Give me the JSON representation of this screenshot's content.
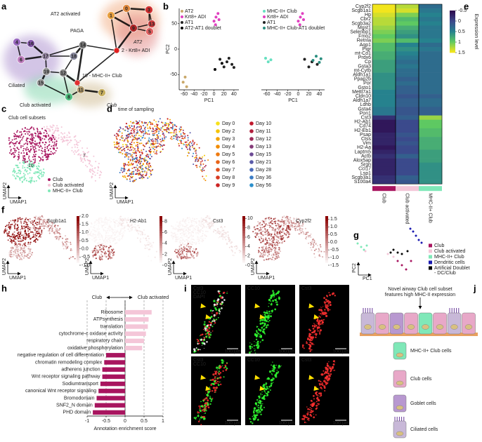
{
  "panel_labels": [
    "a",
    "b",
    "c",
    "d",
    "e",
    "f",
    "g",
    "h",
    "i",
    "j"
  ],
  "paga": {
    "title": "PAGA",
    "group_labels": [
      {
        "text": "AT2 activated",
        "color": "#f0a070"
      },
      {
        "text": "AT2",
        "color": "#e08080"
      },
      {
        "text": "Ciliated",
        "color": "#a080c8"
      },
      {
        "text": "Club activated",
        "color": "#70d0a0"
      },
      {
        "text": "Club",
        "color": "#c8b080"
      }
    ],
    "nodes": [
      {
        "label": "0",
        "color": "#e0893e"
      },
      {
        "label": "3",
        "color": "#d03030"
      },
      {
        "label": "1",
        "color": "#e8a040"
      },
      {
        "label": "9",
        "color": "#b02828"
      },
      {
        "label": "13",
        "color": "#d04040"
      },
      {
        "label": "5",
        "color": "#e06060"
      },
      {
        "label": "2 - Krt8+ ADI",
        "color": "#e02020"
      },
      {
        "label": "14",
        "color": "#777777"
      },
      {
        "label": "18",
        "color": "#8a8aa0"
      },
      {
        "label": "4",
        "color": "#9a6ac0"
      },
      {
        "label": "16",
        "color": "#8a5ab0"
      },
      {
        "label": "17",
        "color": "#9a8aa8"
      },
      {
        "label": "6",
        "color": "#c080c0"
      },
      {
        "label": "19",
        "color": "#9a9a9a"
      },
      {
        "label": "12",
        "color": "#8a8a8a"
      },
      {
        "label": "10 - MHC-II+ Club",
        "color": "#e03030"
      },
      {
        "label": "15",
        "color": "#9a9a9a"
      },
      {
        "label": "11",
        "color": "#b8a070"
      },
      {
        "label": "7",
        "color": "#c8b060"
      },
      {
        "label": "8",
        "color": "#50c080"
      }
    ]
  },
  "chart_data": [
    {
      "type": "scatter",
      "xlabel": "PC1",
      "ylabel": "PC2",
      "xlim": [
        -70,
        50
      ],
      "ylim": [
        -80,
        80
      ],
      "xticks": [
        -60,
        -40,
        -20,
        0,
        20,
        40
      ],
      "yticks": [
        -50,
        0,
        50
      ],
      "series": [
        {
          "name": "AT2",
          "color": "#c9a86a",
          "x": [
            -62,
            -58,
            -55
          ],
          "values": [
            -65,
            -55,
            -74
          ]
        },
        {
          "name": "Krt8+ ADI",
          "color": "#e040c0",
          "x": [
            0,
            4,
            8,
            10,
            3
          ],
          "values": [
            55,
            63,
            70,
            58,
            48
          ]
        },
        {
          "name": "AT1",
          "color": "#222222",
          "x": [
            12,
            20,
            26,
            30,
            36,
            40
          ],
          "values": [
            -20,
            -35,
            -25,
            -18,
            -30,
            -36
          ]
        },
        {
          "name": "AT2-AT1 doublet",
          "color": "#000000",
          "x": [
            2,
            16
          ],
          "values": [
            -40,
            -28
          ]
        }
      ]
    },
    {
      "type": "scatter",
      "xlabel": "PC1",
      "xlim": [
        -70,
        50
      ],
      "ylim": [
        -80,
        80
      ],
      "xticks": [
        -60,
        -40,
        -20,
        0,
        20,
        40
      ],
      "series": [
        {
          "name": "MHC-II+ Club",
          "color": "#66e0c0",
          "x": [
            -62,
            -57,
            -52
          ],
          "values": [
            -18,
            -25,
            -21
          ]
        },
        {
          "name": "Krt8+ ADI",
          "color": "#e040c0",
          "x": [
            0,
            4,
            8,
            10,
            3
          ],
          "values": [
            55,
            63,
            70,
            58,
            48
          ]
        },
        {
          "name": "AT1",
          "color": "#222222",
          "x": [
            12,
            20,
            26,
            36
          ],
          "values": [
            -20,
            -35,
            -25,
            -30
          ]
        },
        {
          "name": "MHC-II+ Club-AT1 doublet",
          "color": "#2a8f80",
          "x": [
            28,
            34,
            40,
            43
          ],
          "values": [
            -22,
            -14,
            -26,
            -19
          ]
        }
      ]
    },
    {
      "type": "heatmap",
      "x": [
        "Club",
        "Club activated",
        "MHC-II+ Club"
      ],
      "column_colors": [
        "#a8155f",
        "#f4c6d8",
        "#7fe8b8"
      ],
      "y": [
        "Cyp2f2",
        "Scgb1a1",
        "Hp",
        "Cbr2",
        "Scgb3a2",
        "Mgst1",
        "Selenbp1",
        "Fmo2",
        "Retnla",
        "Aqp1",
        "Pigr",
        "mt-Co1",
        "Prdx6",
        "Cp",
        "Gsta3",
        "mt-Cytb",
        "Aldh1a1",
        "Ppap2b",
        "Por",
        "Gsto1",
        "Mettl7a1",
        "Cldn10",
        "Aldh1a7",
        "Ldhb",
        "Gsta4",
        "Pon1",
        "Cst3",
        "H2-Ab1",
        "Cd74",
        "H2-Eb1",
        "Psap",
        "Ctss",
        "Vim",
        "H2-Aa",
        "Laptm5",
        "Actb",
        "Alox5ap",
        "Srgn",
        "Ccl17",
        "Lsp1",
        "Scgb3a1",
        "S100a4"
      ],
      "row_label_colors": [
        "#e02020",
        "#e02020",
        "#222222",
        "#222222",
        "#222222",
        "#222222",
        "#222222",
        "#222222",
        "#222222",
        "#222222",
        "#222222",
        "#222222",
        "#222222",
        "#222222",
        "#222222",
        "#222222",
        "#222222",
        "#222222",
        "#222222",
        "#222222",
        "#222222",
        "#222222",
        "#222222",
        "#222222",
        "#222222",
        "#222222",
        "#e02020",
        "#e02020",
        "#222222",
        "#222222",
        "#222222",
        "#222222",
        "#222222",
        "#222222",
        "#222222",
        "#222222",
        "#222222",
        "#222222",
        "#222222",
        "#222222",
        "#222222",
        "#222222"
      ],
      "values": [
        [
          1.5,
          1.3,
          0.3
        ],
        [
          1.5,
          1.4,
          0.4
        ],
        [
          1.4,
          1.1,
          0.5
        ],
        [
          1.3,
          0.9,
          0.4
        ],
        [
          1.3,
          1.0,
          0.5
        ],
        [
          1.2,
          0.8,
          0.4
        ],
        [
          1.1,
          0.7,
          0.4
        ],
        [
          1.0,
          0.6,
          0.4
        ],
        [
          1.1,
          0.9,
          0.5
        ],
        [
          0.9,
          0.5,
          0.3
        ],
        [
          0.9,
          0.6,
          0.4
        ],
        [
          0.8,
          0.5,
          0.3
        ],
        [
          0.8,
          0.4,
          0.3
        ],
        [
          0.7,
          0.3,
          0.3
        ],
        [
          0.7,
          0.4,
          0.3
        ],
        [
          0.7,
          0.3,
          0.3
        ],
        [
          0.6,
          0.3,
          0.3
        ],
        [
          0.6,
          0.2,
          0.3
        ],
        [
          0.6,
          0.3,
          0.3
        ],
        [
          0.6,
          0.2,
          0.3
        ],
        [
          0.5,
          0.2,
          0.3
        ],
        [
          0.5,
          0.1,
          0.2
        ],
        [
          0.5,
          0.2,
          0.3
        ],
        [
          0.5,
          0.2,
          0.3
        ],
        [
          0.4,
          0.1,
          0.2
        ],
        [
          0.4,
          0.1,
          0.2
        ],
        [
          -0.2,
          0.2,
          1.2
        ],
        [
          -0.4,
          0.0,
          1.0
        ],
        [
          -0.4,
          0.0,
          1.0
        ],
        [
          -0.4,
          0.0,
          0.9
        ],
        [
          -0.3,
          0.1,
          0.9
        ],
        [
          -0.3,
          0.0,
          0.8
        ],
        [
          -0.3,
          0.1,
          0.8
        ],
        [
          -0.4,
          0.0,
          0.8
        ],
        [
          -0.3,
          0.0,
          0.7
        ],
        [
          -0.2,
          0.2,
          0.7
        ],
        [
          -0.3,
          0.0,
          0.7
        ],
        [
          -0.3,
          0.0,
          0.6
        ],
        [
          -0.3,
          0.0,
          0.6
        ],
        [
          -0.3,
          0.0,
          0.6
        ],
        [
          -0.2,
          0.2,
          0.6
        ],
        [
          -0.2,
          0.1,
          0.6
        ]
      ],
      "zlim": [
        -0.5,
        1.5
      ],
      "zticks": [
        -0.5,
        0,
        0.5,
        1,
        1.5
      ],
      "zlabel": "Expression level",
      "colormap": [
        "#2d0a4e",
        "#3b4a8c",
        "#26828e",
        "#5ec962",
        "#f2e51d"
      ]
    },
    {
      "type": "bar",
      "orientation": "horizontal",
      "xlabel": "Annotation enrichment score",
      "direction_labels": [
        "Club",
        "Club activated"
      ],
      "categories": [
        "Ribosome",
        "ATPsynthesis",
        "translation",
        "cytochrome-c oxidase activity",
        "respiratory chain",
        "oxidative phosphorylation",
        "negative regulation of cell differentiation",
        "chromatin remodeling complex",
        "adherens junction",
        "Wnt receptor signaling pathway",
        "Sodiumtransport",
        "canonical Wnt receptor signaling",
        "Bromodomain",
        "SNF2_N domain",
        "PHD domain"
      ],
      "values": [
        0.7,
        0.62,
        0.6,
        0.55,
        0.5,
        0.45,
        -0.5,
        -0.55,
        -0.6,
        -0.6,
        -0.65,
        -0.7,
        -0.75,
        -0.8,
        -0.85
      ],
      "colors": [
        "#f4c6d8",
        "#f4c6d8",
        "#f4c6d8",
        "#f4c6d8",
        "#f4c6d8",
        "#f4c6d8",
        "#a8155f",
        "#a8155f",
        "#a8155f",
        "#a8155f",
        "#a8155f",
        "#a8155f",
        "#a8155f",
        "#a8155f",
        "#a8155f"
      ],
      "xlim": [
        -1,
        1
      ],
      "xticks": [
        -1,
        -0.5,
        0,
        0.5,
        1
      ],
      "grid": true
    }
  ],
  "umap_c": {
    "title": "Club cell subsets",
    "xlabel": "UMAP1",
    "ylabel": "UMAP2",
    "cluster_labels": [
      "7",
      "10"
    ],
    "legend": [
      {
        "name": "Club",
        "color": "#a8155f"
      },
      {
        "name": "Club activated",
        "color": "#f4c6d8"
      },
      {
        "name": "MHC-II+ Club",
        "color": "#7fe8b8"
      }
    ]
  },
  "umap_d": {
    "title": "time of sampling",
    "xlabel": "UMAP1",
    "ylabel": "UMAP2",
    "legend": [
      {
        "name": "Day 0",
        "color": "#f7e11a"
      },
      {
        "name": "Day 2",
        "color": "#f5c400"
      },
      {
        "name": "Day 3",
        "color": "#f4a300"
      },
      {
        "name": "Day 4",
        "color": "#f28c00"
      },
      {
        "name": "Day 5",
        "color": "#ee7a10"
      },
      {
        "name": "Day 6",
        "color": "#e86418"
      },
      {
        "name": "Day 7",
        "color": "#e04f1e"
      },
      {
        "name": "Day 8",
        "color": "#d83a22"
      },
      {
        "name": "Day 9",
        "color": "#cc2424"
      },
      {
        "name": "Day 10",
        "color": "#c0182c"
      },
      {
        "name": "Day 11",
        "color": "#b01e3c"
      },
      {
        "name": "Day 12",
        "color": "#9c2a58"
      },
      {
        "name": "Day 13",
        "color": "#843a78"
      },
      {
        "name": "Day 15",
        "color": "#6c4a94"
      },
      {
        "name": "Day 21",
        "color": "#5a5aa8"
      },
      {
        "name": "Day 28",
        "color": "#4a6ab8"
      },
      {
        "name": "Day 36",
        "color": "#3a7cc4"
      },
      {
        "name": "Day 56",
        "color": "#2c90cc"
      }
    ]
  },
  "umap_f": {
    "xlabel": "UMAP1",
    "ylabel": "UMAP2",
    "colormap": [
      "#ffffff",
      "#8b0000"
    ],
    "panels": [
      {
        "title": "Scgb1a1",
        "lim": [
          -1,
          2
        ],
        "ticks": [
          {
            "value": 2,
            "label": "2.0"
          },
          {
            "value": 1.5,
            "label": "1.5"
          },
          {
            "value": 1,
            "label": "1.0"
          },
          {
            "value": 0.5,
            "label": "0.5"
          },
          {
            "value": 0,
            "label": "0.0"
          },
          {
            "value": -0.5,
            "label": "-0.5"
          },
          {
            "value": -1,
            "label": "-1.0"
          }
        ]
      },
      {
        "title": "H2-Ab1",
        "lim": [
          0,
          9
        ],
        "ticks": [
          8,
          6,
          4,
          2,
          0
        ]
      },
      {
        "title": "Cst3",
        "lim": [
          0,
          10.5
        ],
        "ticks": [
          10,
          8,
          6,
          4,
          2,
          0
        ]
      },
      {
        "title": "Cyp2f2",
        "lim": [
          -1.5,
          1.7
        ],
        "ticks": [
          {
            "value": 1.5,
            "label": "1.5"
          },
          {
            "value": 1,
            "label": "1.0"
          },
          {
            "value": 0.5,
            "label": "0.5"
          },
          {
            "value": 0,
            "label": "0.0"
          },
          {
            "value": -0.5,
            "label": "-0.5"
          },
          {
            "value": -1,
            "label": "-1.0"
          },
          {
            "value": -1.5,
            "label": "-1.5"
          }
        ]
      }
    ]
  },
  "pca_g": {
    "xlabel": "PC1",
    "ylabel": "PC2",
    "legend": [
      {
        "color": "#a8155f",
        "lines": [
          "Club"
        ]
      },
      {
        "color": "#f4c6d8",
        "lines": [
          "Club activated"
        ]
      },
      {
        "color": "#7fe8b8",
        "lines": [
          "MHC-II+ Club"
        ]
      },
      {
        "color": "#1a1ab0",
        "lines": [
          "Dendritic cells"
        ]
      },
      {
        "color": "#000000",
        "lines": [
          "Artificial Doublet",
          "- DC/Club"
        ]
      }
    ]
  },
  "microscopy": {
    "tiles": [
      {
        "labels": [
          {
            "text": "Cst3",
            "color": "#ff3030"
          },
          {
            "text": "CC10",
            "color": "#30ff30"
          },
          {
            "text": "DAPI",
            "color": "#ffffff"
          }
        ],
        "scale": "100 μm"
      },
      {
        "labels": [
          {
            "text": "CC10",
            "color": "#30ff30"
          }
        ],
        "scale": "100 μm"
      },
      {
        "labels": [
          {
            "text": "Cst3",
            "color": "#ff3030"
          }
        ],
        "scale": "100 μm"
      },
      {
        "labels": [
          {
            "text": "Cst3",
            "color": "#ff3030"
          },
          {
            "text": "CC10",
            "color": "#30ff30"
          }
        ],
        "scale": "100 μm"
      },
      {
        "labels": [
          {
            "text": "CC10",
            "color": "#30ff30"
          }
        ],
        "scale": "100 μm"
      },
      {
        "labels": [
          {
            "text": "Cst3",
            "color": "#ff3030"
          }
        ],
        "scale": "100 μm"
      }
    ]
  },
  "schematic": {
    "title_lines": [
      "Novel airway Club cell subset",
      "features high MHC-II expression"
    ],
    "legend": [
      {
        "text": "MHC-II+ Club cells",
        "color": "#7fe8b8"
      },
      {
        "text": "Club cells",
        "color": "#e8a8c8"
      },
      {
        "text": "Goblet cells",
        "color": "#b898d0"
      },
      {
        "text": "Ciliated cells",
        "color": "#c8b8d8"
      }
    ]
  }
}
